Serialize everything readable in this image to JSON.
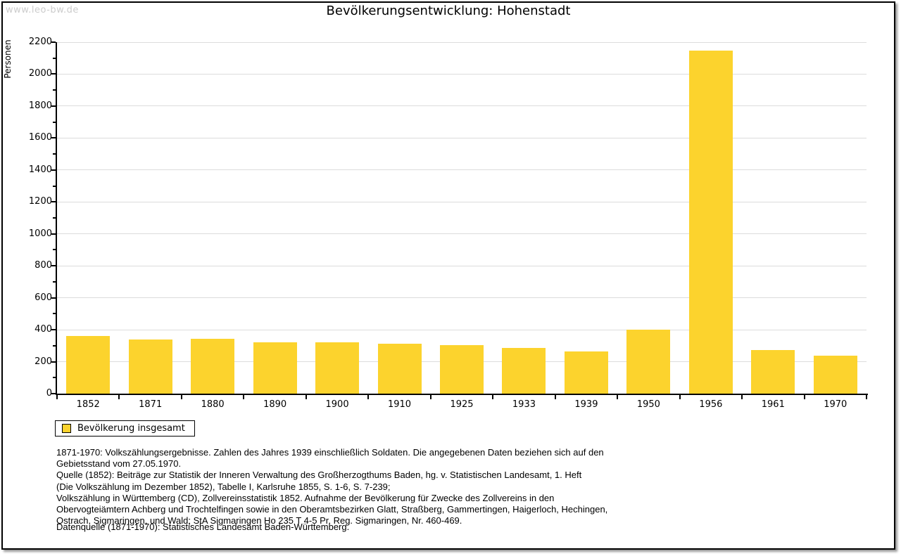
{
  "watermark": "www.leo-bw.de",
  "chart_data": {
    "type": "bar",
    "title": "Bevölkerungsentwicklung: Hohenstadt",
    "xlabel": "",
    "ylabel": "Personen",
    "categories": [
      "1852",
      "1871",
      "1880",
      "1890",
      "1900",
      "1910",
      "1925",
      "1933",
      "1939",
      "1950",
      "1956",
      "1961",
      "1970"
    ],
    "values": [
      360,
      340,
      345,
      322,
      322,
      312,
      305,
      288,
      262,
      402,
      2147,
      273,
      239
    ],
    "ylim": [
      0,
      2200
    ],
    "ytick_major": 200,
    "ytick_minor": 100,
    "grid": "horizontal",
    "grid_color": "#dcdcdc",
    "bar_color": "#fcd32d",
    "legend": {
      "label": "Bevölkerung insgesamt",
      "position": "bottom-left"
    }
  },
  "footnote": {
    "lines": [
      "1871-1970: Volkszählungsergebnisse. Zahlen des Jahres 1939 einschließlich Soldaten. Die angegebenen Daten beziehen sich auf den",
      "Gebietsstand vom 27.05.1970.",
      "Quelle (1852): Beiträge zur Statistik der Inneren Verwaltung des Großherzogthums Baden, hg. v. Statistischen Landesamt, 1. Heft",
      "(Die Volkszählung im Dezember 1852), Tabelle I, Karlsruhe 1855, S. 1-6, S. 7-239;",
      "Volkszählung in Württemberg (CD), Zollvereinsstatistik 1852. Aufnahme der Bevölkerung für Zwecke des Zollvereins in den",
      "Obervogteiämtern Achberg und Trochtelfingen sowie in den Oberamtsbezirken Glatt, Straßberg, Gammertingen, Haigerloch, Hechingen,",
      "Ostrach, Sigmaringen, und Wald; StA Sigmaringen Ho 235 T 4-5 Pr. Reg. Sigmaringen, Nr. 460-469."
    ]
  },
  "datasource": "Datenquelle (1871-1970): Statistisches Landesamt Baden-Württemberg."
}
